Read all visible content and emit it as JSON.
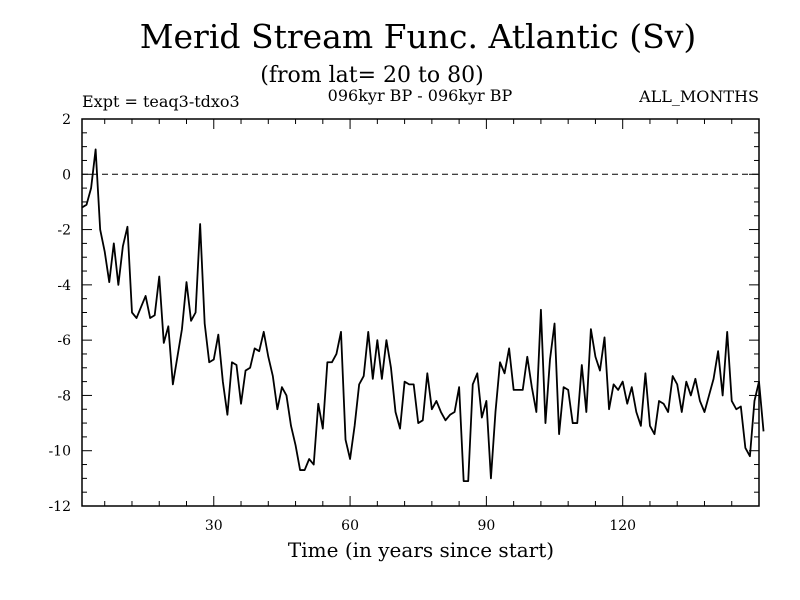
{
  "chart_data": {
    "type": "line",
    "title": "Merid Stream Func. Atlantic (Sv)",
    "subtitle": "(from lat= 20 to 80)",
    "header_left": "Expt = teaq3-tdxo3",
    "header_center": "096kyr BP - 096kyr BP",
    "header_right": "ALL_MONTHS",
    "xlabel": "Time (in years since start)",
    "ylabel": "",
    "xlim": [
      1,
      150
    ],
    "ylim": [
      -12,
      2
    ],
    "xticks": [
      30,
      60,
      90,
      120
    ],
    "yticks": [
      2,
      0,
      -2,
      -4,
      -6,
      -8,
      -10,
      -12
    ],
    "xtick_labels": [
      "30",
      "60",
      "90",
      "120"
    ],
    "ytick_labels": [
      "2",
      "0",
      "-2",
      "-4",
      "-6",
      "-8",
      "-10",
      "-12"
    ],
    "reference_line": {
      "y": 0,
      "style": "dashed"
    },
    "series": [
      {
        "name": "Merid Stream Func. Atlantic",
        "x_start": 1,
        "x_step": 1,
        "values": [
          -1.2,
          -1.1,
          -0.5,
          0.9,
          -2.0,
          -2.8,
          -3.9,
          -2.5,
          -4.0,
          -2.6,
          -1.9,
          -5.0,
          -5.2,
          -4.8,
          -4.4,
          -5.2,
          -5.1,
          -3.7,
          -6.1,
          -5.5,
          -7.6,
          -6.6,
          -5.6,
          -3.9,
          -5.3,
          -5.0,
          -1.8,
          -5.4,
          -6.8,
          -6.7,
          -5.8,
          -7.5,
          -8.7,
          -6.8,
          -6.9,
          -8.3,
          -7.1,
          -7.0,
          -6.3,
          -6.4,
          -5.7,
          -6.6,
          -7.3,
          -8.5,
          -7.7,
          -8.0,
          -9.1,
          -9.8,
          -10.7,
          -10.7,
          -10.3,
          -10.5,
          -8.3,
          -9.2,
          -6.8,
          -6.8,
          -6.5,
          -5.7,
          -9.6,
          -10.3,
          -9.1,
          -7.6,
          -7.3,
          -5.7,
          -7.4,
          -6.0,
          -7.4,
          -6.0,
          -7.0,
          -8.6,
          -9.2,
          -7.5,
          -7.6,
          -7.6,
          -9.0,
          -8.9,
          -7.2,
          -8.5,
          -8.2,
          -8.6,
          -8.9,
          -8.7,
          -8.6,
          -7.7,
          -11.1,
          -11.1,
          -7.6,
          -7.2,
          -8.8,
          -8.2,
          -11.0,
          -8.6,
          -6.8,
          -7.2,
          -6.3,
          -7.8,
          -7.8,
          -7.8,
          -6.6,
          -7.7,
          -8.6,
          -4.9,
          -9.0,
          -6.7,
          -5.4,
          -9.4,
          -7.7,
          -7.8,
          -9.0,
          -9.0,
          -6.9,
          -8.6,
          -5.6,
          -6.6,
          -7.1,
          -5.9,
          -8.5,
          -7.6,
          -7.8,
          -7.5,
          -8.3,
          -7.7,
          -8.6,
          -9.1,
          -7.2,
          -9.1,
          -9.4,
          -8.2,
          -8.3,
          -8.6,
          -7.3,
          -7.6,
          -8.6,
          -7.5,
          -8.0,
          -7.4,
          -8.2,
          -8.6,
          -8.0,
          -7.4,
          -6.4,
          -8.0,
          -5.7,
          -8.2,
          -8.5,
          -8.4,
          -9.9,
          -10.2,
          -8.2,
          -7.5,
          -9.3
        ]
      }
    ]
  }
}
